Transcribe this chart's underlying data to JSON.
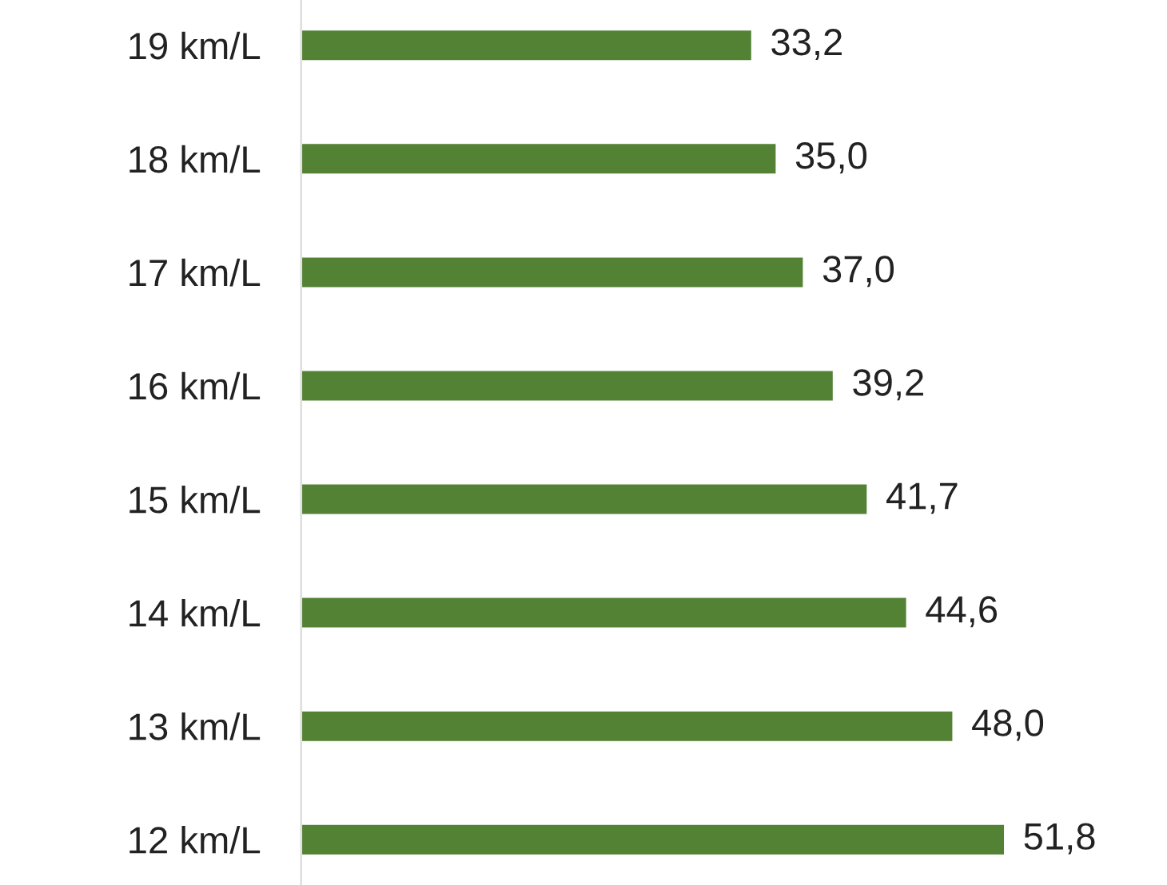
{
  "chart_data": {
    "type": "bar",
    "orientation": "horizontal",
    "categories": [
      "19 km/L",
      "18 km/L",
      "17 km/L",
      "16 km/L",
      "15 km/L",
      "14 km/L",
      "13 km/L",
      "12 km/L"
    ],
    "values": [
      33.2,
      35.0,
      37.0,
      39.2,
      41.7,
      44.6,
      48.0,
      51.8
    ],
    "value_labels": [
      "33,2",
      "35,0",
      "37,0",
      "39,2",
      "41,7",
      "44,6",
      "48,0",
      "51,8"
    ],
    "color": "#548235",
    "grid": false,
    "legend": false
  }
}
